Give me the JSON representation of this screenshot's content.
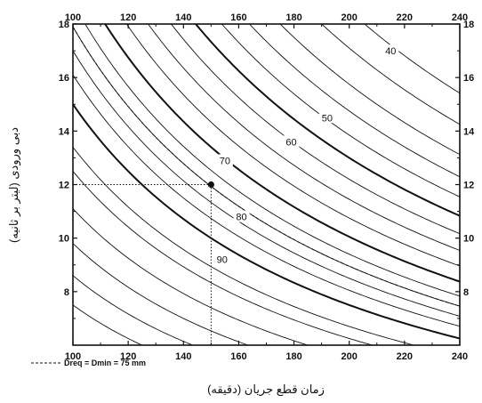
{
  "chart_data": {
    "type": "line",
    "title": "",
    "xlabel": "زمان قطع جریان (دقیقه)",
    "ylabel": "دبی ورودی (لیتر بر ثانیه)",
    "xlim": [
      100,
      240
    ],
    "ylim": [
      6,
      18
    ],
    "x_ticks": [
      "100",
      "120",
      "140",
      "160",
      "180",
      "200",
      "220",
      "240"
    ],
    "y_ticks": [
      "8",
      "10",
      "12",
      "14",
      "16",
      "18"
    ],
    "grid": false,
    "ticks_on_all_sides": true,
    "contour_family": "y proportional to 1/x",
    "curves": [
      {
        "label": "",
        "k": 750,
        "weight": "thin"
      },
      {
        "label": "",
        "k": 860,
        "weight": "thin"
      },
      {
        "label": "",
        "k": 980,
        "weight": "thin"
      },
      {
        "label": "",
        "k": 1110,
        "weight": "thin"
      },
      {
        "label": "",
        "k": 1250,
        "weight": "thin"
      },
      {
        "label": "90",
        "k": 1340,
        "weight": "thin"
      },
      {
        "label": "",
        "k": 1500,
        "weight": "thick"
      },
      {
        "label": "",
        "k": 1610,
        "weight": "thin"
      },
      {
        "label": "80",
        "k": 1700,
        "weight": "thin"
      },
      {
        "label": "",
        "k": 1790,
        "weight": "thin"
      },
      {
        "label": "70",
        "k": 1880,
        "weight": "thin"
      },
      {
        "label": "",
        "k": 2010,
        "weight": "thick"
      },
      {
        "label": "",
        "k": 2150,
        "weight": "thin"
      },
      {
        "label": "60",
        "k": 2290,
        "weight": "thin"
      },
      {
        "label": "",
        "k": 2440,
        "weight": "thin"
      },
      {
        "label": "50",
        "k": 2600,
        "weight": "thick"
      },
      {
        "label": "",
        "k": 2770,
        "weight": "thin"
      },
      {
        "label": "",
        "k": 2950,
        "weight": "thin"
      },
      {
        "label": "",
        "k": 3150,
        "weight": "thin"
      },
      {
        "label": "40",
        "k": 3420,
        "weight": "thin"
      },
      {
        "label": "",
        "k": 3700,
        "weight": "thin"
      }
    ],
    "curve_labels": [
      {
        "text": "90",
        "x": 154,
        "y": 9.2
      },
      {
        "text": "80",
        "x": 161,
        "y": 10.8
      },
      {
        "text": "70",
        "x": 155,
        "y": 12.9
      },
      {
        "text": "60",
        "x": 179,
        "y": 13.6
      },
      {
        "text": "50",
        "x": 192,
        "y": 14.5
      },
      {
        "text": "40",
        "x": 215,
        "y": 17.0
      }
    ],
    "dashed_curve": {
      "name": "Dreq = Dmin = 75 mm",
      "k": 1790
    },
    "marked_point": {
      "x": 150,
      "y": 12
    },
    "reference_lines": {
      "x": 150,
      "y": 12
    }
  },
  "legend": {
    "text": "Dreq = Dmin = 75 mm"
  }
}
